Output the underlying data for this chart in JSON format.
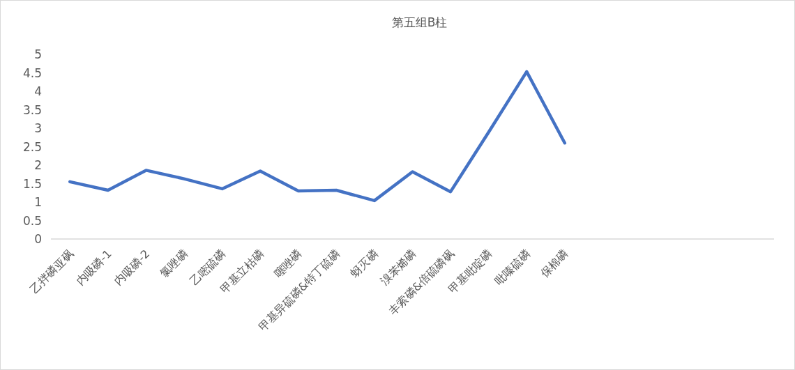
{
  "chart_data": {
    "type": "line",
    "title": "第五组B柱",
    "categories": [
      "乙拌磷亚砜",
      "内吸磷-1",
      "内吸磷-2",
      "氯唑磷",
      "乙嘧硫磷",
      "甲基立枯磷",
      "噻唑磷",
      "甲基异硫磷&特丁硫磷",
      "蚜灭磷",
      "溴苯烯磷",
      "丰索磷&倍硫磷砜",
      "甲基吡啶磷",
      "吡嗪硫磷",
      "保棉磷",
      null,
      null,
      null,
      null,
      null
    ],
    "series": [
      {
        "color": "#4472c4",
        "values": [
          1.55,
          1.32,
          1.86,
          1.63,
          1.36,
          1.84,
          1.3,
          1.32,
          1.04,
          1.82,
          1.28,
          2.89,
          4.53,
          2.6,
          null,
          null,
          null,
          null,
          null
        ]
      }
    ],
    "ylim": [
      0,
      5
    ],
    "yticks": [
      0,
      0.5,
      1,
      1.5,
      2,
      2.5,
      3,
      3.5,
      4,
      4.5,
      5
    ],
    "grid": false,
    "marker": "none",
    "line_style": "solid"
  }
}
